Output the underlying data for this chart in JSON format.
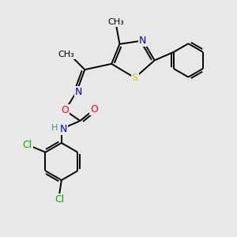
{
  "background_color": "#e8e8e8",
  "bond_color": "#000000",
  "atom_colors": {
    "N": "#0000cc",
    "O": "#ff0000",
    "S": "#cccc00",
    "Cl": "#00aa00",
    "C": "#000000",
    "H": "#4a9090"
  },
  "bond_lw": 1.4,
  "font_size": 9,
  "fig_size": [
    3.0,
    3.0
  ],
  "dpi": 100
}
